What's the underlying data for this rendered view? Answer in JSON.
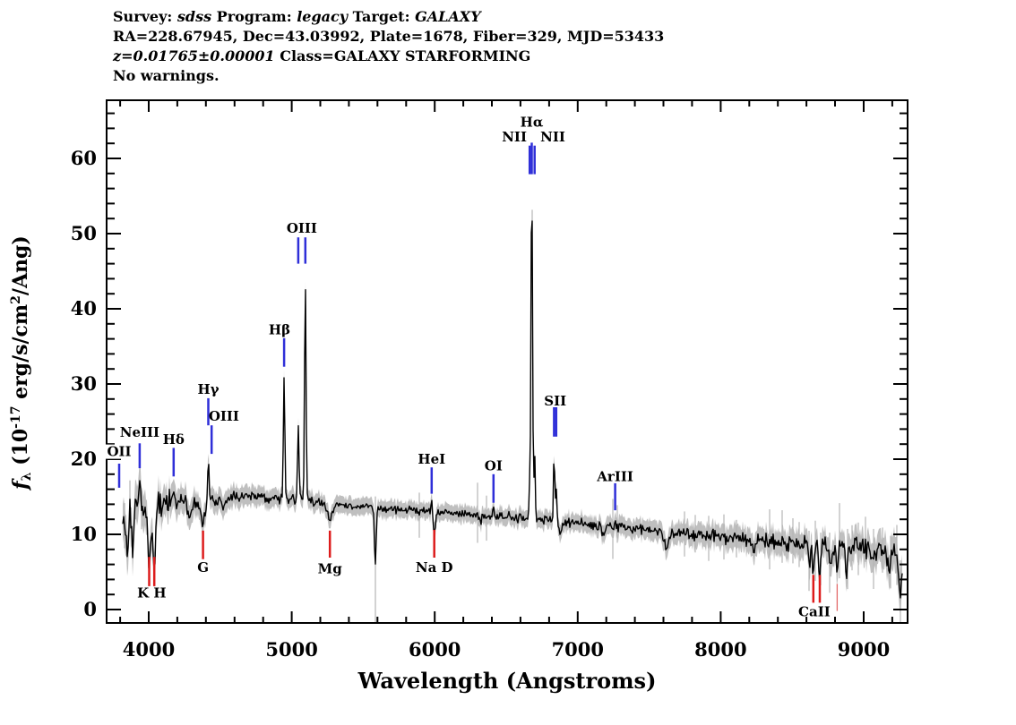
{
  "header": {
    "survey_label": "Survey:",
    "survey": "sdss",
    "program_label": "Program:",
    "program": "legacy",
    "target_label": "Target:",
    "target": "GALAXY",
    "line2": "RA=228.67945, Dec=43.03992, Plate=1678, Fiber=329, MJD=53433",
    "line3_z": "z=0.01765±0.00001",
    "line3_class": "Class=GALAXY STARFORMING",
    "line4": "No warnings."
  },
  "colors": {
    "emission": "#2f2fd8",
    "absorption": "#dd1c1c",
    "absorption_thin": "#e36a6a",
    "spectrum": "#000000",
    "error_band": "#bfbfbf",
    "error_spike": "#b5b5b5",
    "frame": "#000000"
  },
  "chart_data": {
    "type": "line",
    "title": "SDSS spectrum Plate=1678 Fiber=329",
    "xlabel": "Wavelength (Angstroms)",
    "ylabel_parts": [
      {
        "t": "f",
        "italic": true
      },
      {
        "t": "λ",
        "pos": "sub"
      },
      {
        "t": " (10"
      },
      {
        "t": "-17",
        "pos": "sup"
      },
      {
        "t": " erg/s/cm"
      },
      {
        "t": "2",
        "pos": "sup"
      },
      {
        "t": "/Ang)"
      }
    ],
    "x_range": [
      3705.5,
      9307.3
    ],
    "y_range": [
      -1.79,
      67.74
    ],
    "x_ticks": [
      4000,
      5000,
      6000,
      7000,
      8000,
      9000
    ],
    "y_ticks": [
      0,
      10,
      20,
      30,
      40,
      50,
      60
    ],
    "x_minor_step": 200,
    "y_minor_step": 2,
    "data_range": [
      3818,
      9270
    ],
    "continuum": [
      [
        3818,
        12.0
      ],
      [
        3860,
        13.0
      ],
      [
        3910,
        13.8
      ],
      [
        3960,
        13.5
      ],
      [
        4020,
        13.2
      ],
      [
        4080,
        14.3
      ],
      [
        4150,
        14.6
      ],
      [
        4250,
        14.3
      ],
      [
        4350,
        14.0
      ],
      [
        4450,
        14.3
      ],
      [
        4550,
        14.8
      ],
      [
        4650,
        15.1
      ],
      [
        4750,
        15.0
      ],
      [
        4900,
        14.8
      ],
      [
        5000,
        14.7
      ],
      [
        5100,
        14.6
      ],
      [
        5250,
        14.3
      ],
      [
        5400,
        13.9
      ],
      [
        5600,
        13.5
      ],
      [
        5800,
        13.3
      ],
      [
        6000,
        13.0
      ],
      [
        6200,
        12.7
      ],
      [
        6400,
        12.5
      ],
      [
        6600,
        12.2
      ],
      [
        6800,
        11.9
      ],
      [
        7000,
        11.5
      ],
      [
        7200,
        11.1
      ],
      [
        7400,
        10.7
      ],
      [
        7600,
        10.3
      ],
      [
        7800,
        10.0
      ],
      [
        8000,
        9.7
      ],
      [
        8200,
        9.4
      ],
      [
        8400,
        9.1
      ],
      [
        8600,
        8.8
      ],
      [
        8800,
        8.5
      ],
      [
        9000,
        8.4
      ],
      [
        9150,
        8.2
      ],
      [
        9270,
        7.8
      ]
    ],
    "emission_lines": [
      [
        3793,
        3.5,
        5
      ],
      [
        3937,
        4.0,
        5
      ],
      [
        4174,
        2.0,
        4
      ],
      [
        4417,
        6.5,
        5
      ],
      [
        4440,
        1.0,
        4
      ],
      [
        4947,
        16.5,
        5
      ],
      [
        5046,
        10.0,
        5
      ],
      [
        5095,
        29.5,
        5
      ],
      [
        5979,
        2.0,
        5
      ],
      [
        6411,
        1.5,
        4
      ],
      [
        6664,
        4.0,
        4
      ],
      [
        6679,
        45.5,
        5.5
      ],
      [
        6699,
        9.0,
        4
      ],
      [
        6835,
        8.5,
        4.5
      ],
      [
        6850,
        4.5,
        4.5
      ],
      [
        7262,
        1.0,
        4
      ]
    ],
    "absorption_features": [
      [
        3850,
        5.0,
        8
      ],
      [
        3890,
        5.0,
        7
      ],
      [
        4003,
        8.0,
        9
      ],
      [
        4039,
        8.5,
        9
      ],
      [
        4290,
        2.0,
        10
      ],
      [
        4380,
        3.0,
        12
      ],
      [
        4520,
        1.5,
        8
      ],
      [
        5267,
        2.0,
        18
      ],
      [
        5585,
        7.5,
        6
      ],
      [
        5997,
        2.5,
        10
      ],
      [
        6320,
        1.0,
        6
      ],
      [
        6880,
        1.5,
        12
      ],
      [
        7180,
        1.2,
        10
      ],
      [
        7620,
        2.0,
        16
      ],
      [
        8230,
        1.5,
        10
      ],
      [
        8620,
        3.0,
        8
      ],
      [
        8648,
        4.0,
        7
      ],
      [
        8693,
        4.5,
        7
      ],
      [
        8770,
        3.0,
        8
      ],
      [
        8815,
        4.0,
        7
      ],
      [
        8880,
        3.5,
        8
      ],
      [
        9060,
        2.0,
        10
      ],
      [
        9180,
        2.5,
        12
      ],
      [
        9255,
        5.0,
        12
      ]
    ],
    "noise": {
      "seed": 1337,
      "sigma_anchors": [
        [
          3818,
          1.7
        ],
        [
          3950,
          1.6
        ],
        [
          4100,
          1.3
        ],
        [
          4300,
          0.9
        ],
        [
          4600,
          0.55
        ],
        [
          5200,
          0.5
        ],
        [
          6000,
          0.45
        ],
        [
          6800,
          0.5
        ],
        [
          7600,
          0.65
        ],
        [
          8200,
          0.85
        ],
        [
          8700,
          1.05
        ],
        [
          9270,
          1.15
        ]
      ]
    },
    "error_band_anchors": [
      [
        3818,
        2.6
      ],
      [
        3950,
        2.4
      ],
      [
        4150,
        1.8
      ],
      [
        4400,
        1.4
      ],
      [
        4800,
        1.1
      ],
      [
        5500,
        1.0
      ],
      [
        6500,
        0.95
      ],
      [
        7400,
        1.1
      ],
      [
        8200,
        1.5
      ],
      [
        8800,
        1.7
      ],
      [
        9100,
        1.9
      ],
      [
        9270,
        2.4
      ]
    ],
    "error_spikes": [
      [
        3830,
        3,
        3
      ],
      [
        3870,
        2.5,
        2.5
      ],
      [
        3950,
        2.5,
        2.5
      ],
      [
        5585,
        9,
        9
      ],
      [
        5895,
        3,
        3
      ],
      [
        6302,
        4,
        4
      ],
      [
        6365,
        3,
        3
      ],
      [
        6679,
        1.5,
        0
      ],
      [
        7246,
        4,
        4
      ],
      [
        7280,
        2.5,
        2.5
      ],
      [
        7750,
        3,
        3
      ],
      [
        7820,
        2.5,
        2.5
      ],
      [
        7915,
        3,
        3
      ],
      [
        8025,
        3,
        3
      ],
      [
        8110,
        2.5,
        2.5
      ],
      [
        8345,
        4,
        4
      ],
      [
        8430,
        3.5,
        3.5
      ],
      [
        8505,
        3,
        3
      ],
      [
        8550,
        3,
        3
      ],
      [
        8620,
        4,
        4
      ],
      [
        8660,
        4,
        4
      ],
      [
        8700,
        3.5,
        3.5
      ],
      [
        8760,
        4,
        4
      ],
      [
        8830,
        5,
        5
      ],
      [
        8890,
        4,
        4
      ],
      [
        8920,
        3,
        3
      ],
      [
        8960,
        3.5,
        3.5
      ],
      [
        9010,
        3,
        3
      ],
      [
        9070,
        4,
        4
      ],
      [
        9130,
        3,
        3
      ],
      [
        9190,
        3.5,
        3.5
      ],
      [
        9230,
        4,
        4
      ],
      [
        9260,
        5,
        6
      ]
    ],
    "markers": [
      {
        "label": "OII",
        "color": "emission",
        "ticks": [
          3793
        ],
        "tick_top": 19.4,
        "tick_bottom": 16.2,
        "label_x": 3793,
        "label_y": 20.4,
        "bg": true
      },
      {
        "label": "NeIII",
        "color": "emission",
        "ticks": [
          3937
        ],
        "tick_top": 22.1,
        "tick_bottom": 18.8,
        "label_x": 3937,
        "label_y": 23.0
      },
      {
        "label": "Hδ",
        "color": "emission",
        "ticks": [
          4174
        ],
        "tick_top": 21.5,
        "tick_bottom": 17.7,
        "label_x": 4174,
        "label_y": 22.0
      },
      {
        "label": "Hγ",
        "color": "emission",
        "ticks": [
          4417
        ],
        "tick_top": 28.1,
        "tick_bottom": 24.5,
        "label_x": 4417,
        "label_y": 28.7
      },
      {
        "label": "OIII",
        "color": "emission",
        "ticks": [
          4440
        ],
        "tick_top": 24.5,
        "tick_bottom": 20.7,
        "label_x": 4526,
        "label_y": 25.1
      },
      {
        "label": "Hβ",
        "color": "emission",
        "ticks": [
          4947
        ],
        "tick_top": 36.1,
        "tick_bottom": 32.3,
        "label_x": 4915,
        "label_y": 36.6
      },
      {
        "label": "OIII",
        "color": "emission",
        "ticks": [
          5046,
          5095
        ],
        "tick_top": 49.5,
        "tick_bottom": 46.0,
        "label_x": 5071,
        "label_y": 50.1
      },
      {
        "label": "HeI",
        "color": "emission",
        "ticks": [
          5979
        ],
        "tick_top": 18.9,
        "tick_bottom": 15.4,
        "label_x": 5979,
        "label_y": 19.4
      },
      {
        "label": "OI",
        "color": "emission",
        "ticks": [
          6411
        ],
        "tick_top": 18.0,
        "tick_bottom": 14.2,
        "label_x": 6411,
        "label_y": 18.5
      },
      {
        "label": "NII",
        "color": "emission",
        "ticks": [
          6664
        ],
        "tick_top": 61.7,
        "tick_bottom": 57.9,
        "label_x": 6557,
        "label_y": 62.25
      },
      {
        "label": "Hα",
        "color": "emission",
        "ticks": [
          6679
        ],
        "tick_top": 62.1,
        "tick_bottom": 57.9,
        "label_x": 6679,
        "label_y": 64.2
      },
      {
        "label": "NII",
        "color": "emission",
        "ticks": [
          6699
        ],
        "tick_top": 61.7,
        "tick_bottom": 57.9,
        "label_x": 6826,
        "label_y": 62.25
      },
      {
        "label": "SII",
        "color": "emission",
        "ticks": [
          6835,
          6850
        ],
        "tick_top": 26.9,
        "tick_bottom": 23.0,
        "label_x": 6843,
        "label_y": 27.15
      },
      {
        "label": "ArIII",
        "color": "emission",
        "ticks": [
          7262
        ],
        "tick_top": 16.8,
        "tick_bottom": 13.2,
        "label_x": 7262,
        "label_y": 17.1
      },
      {
        "label": "K H",
        "color": "absorption",
        "ticks": [
          4003,
          4039
        ],
        "tick_top": 7.0,
        "tick_bottom": 3.1,
        "label_x": 4021,
        "label_y": 1.6
      },
      {
        "label": "G",
        "color": "absorption",
        "ticks": [
          4380
        ],
        "tick_top": 10.5,
        "tick_bottom": 6.7,
        "label_x": 4380,
        "label_y": 5.0
      },
      {
        "label": "Mg",
        "color": "absorption",
        "ticks": [
          5267
        ],
        "tick_top": 10.5,
        "tick_bottom": 6.9,
        "label_x": 5267,
        "label_y": 4.8
      },
      {
        "label": "Na D",
        "color": "absorption",
        "ticks": [
          5997
        ],
        "tick_top": 10.6,
        "tick_bottom": 6.9,
        "label_x": 5997,
        "label_y": 5.0
      },
      {
        "label": "CaII",
        "color": "absorption",
        "ticks": [
          8648,
          8693
        ],
        "tick_top": 4.6,
        "tick_bottom": 0.9,
        "label_x": 8655,
        "label_y": -0.9
      },
      {
        "label": "",
        "color": "absorption_thin",
        "ticks": [
          8815
        ],
        "tick_top": 3.4,
        "tick_bottom": -0.2,
        "thin": true,
        "label_x": 8815,
        "label_y": 0
      }
    ]
  }
}
